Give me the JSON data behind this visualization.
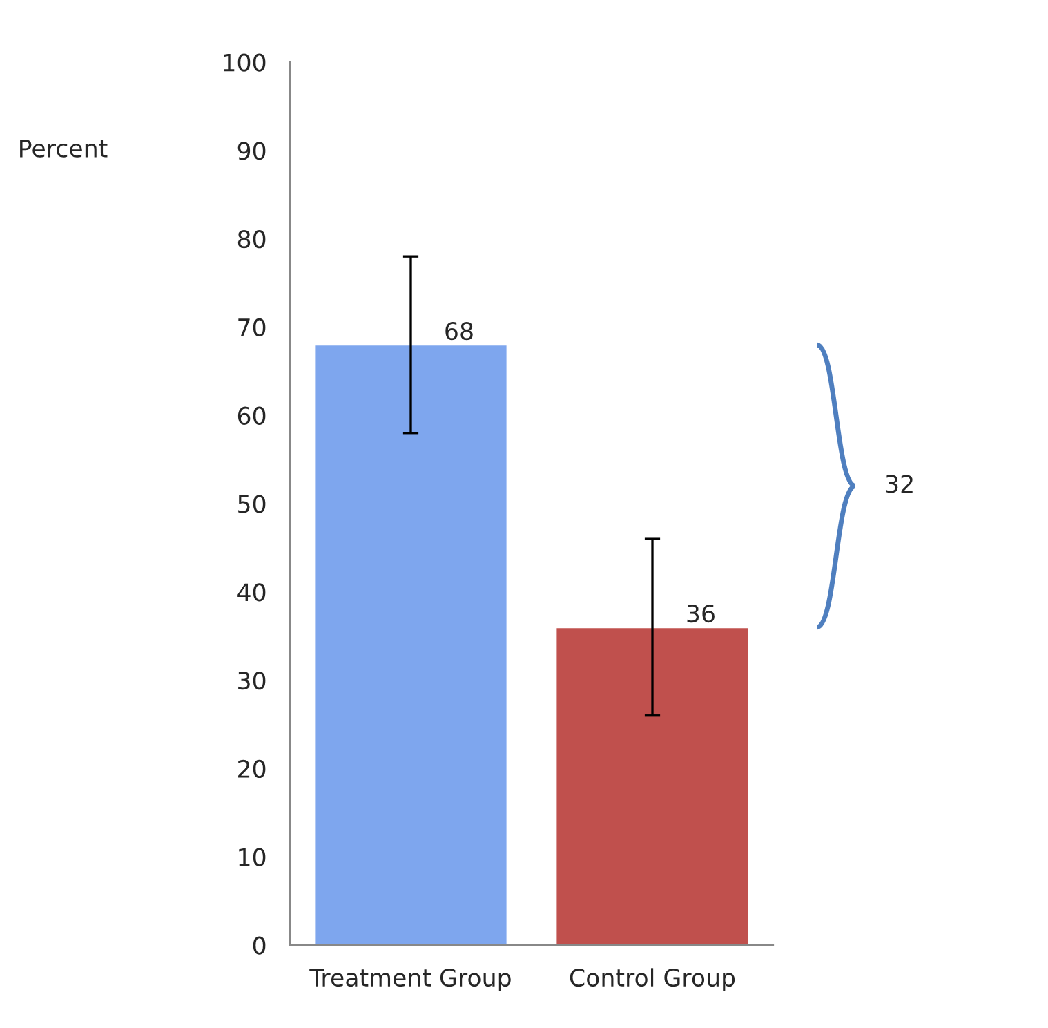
{
  "chart_data": {
    "type": "bar",
    "ylabel": "Percent",
    "categories": [
      "Treatment Group",
      "Control Group"
    ],
    "values": [
      68,
      36
    ],
    "colors": [
      "#7ea6ee",
      "#c0504d"
    ],
    "errors": [
      10,
      10
    ],
    "data_labels": true,
    "ylim": [
      0,
      100
    ],
    "yticks": [
      0,
      10,
      20,
      30,
      40,
      50,
      60,
      70,
      80,
      90,
      100
    ],
    "grid": false,
    "annotations": [
      "32"
    ]
  }
}
